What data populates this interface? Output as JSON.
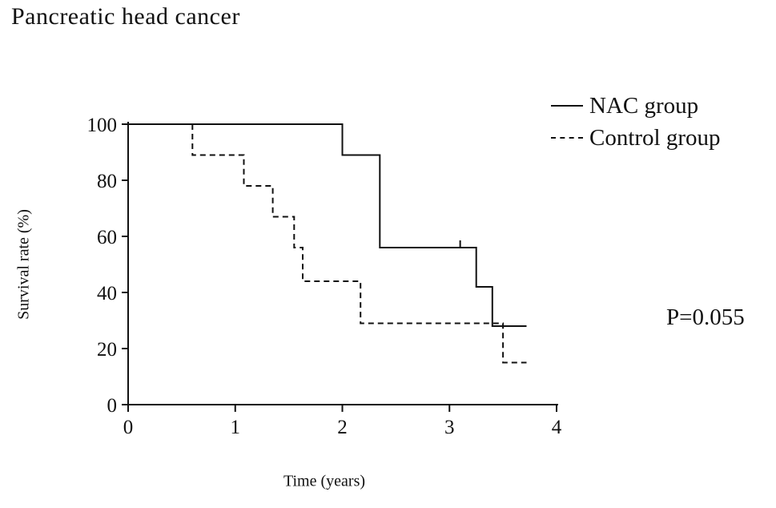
{
  "title": "Pancreatic head cancer",
  "p_value": "P=0.055",
  "legend": [
    {
      "name": "NAC group",
      "style": "solid"
    },
    {
      "name": "Control group",
      "style": "dashed"
    }
  ],
  "chart_data": {
    "type": "line",
    "subtype": "kaplan-meier-step",
    "title": "Pancreatic head cancer",
    "xlabel": "Time (years)",
    "ylabel": "Survival rate (%)",
    "xlim": [
      0,
      4
    ],
    "ylim": [
      0,
      100
    ],
    "xticks": [
      0,
      1,
      2,
      3,
      4
    ],
    "yticks": [
      0,
      20,
      40,
      60,
      80,
      100
    ],
    "grid": false,
    "legend_position": "top-right",
    "annotation": "P=0.055",
    "line_color": "#111111",
    "series": [
      {
        "name": "NAC group",
        "line": "solid",
        "points": [
          [
            0,
            100
          ],
          [
            2.0,
            100
          ],
          [
            2.0,
            89
          ],
          [
            2.35,
            89
          ],
          [
            2.35,
            56
          ],
          [
            3.25,
            56
          ],
          [
            3.25,
            42
          ],
          [
            3.4,
            42
          ],
          [
            3.4,
            28
          ],
          [
            3.72,
            28
          ]
        ],
        "censor_marks": [
          [
            3.1,
            56
          ]
        ]
      },
      {
        "name": "Control group",
        "line": "dashed",
        "points": [
          [
            0.6,
            100
          ],
          [
            0.6,
            89
          ],
          [
            1.08,
            89
          ],
          [
            1.08,
            78
          ],
          [
            1.35,
            78
          ],
          [
            1.35,
            67
          ],
          [
            1.55,
            67
          ],
          [
            1.55,
            56
          ],
          [
            1.63,
            56
          ],
          [
            1.63,
            44
          ],
          [
            2.17,
            44
          ],
          [
            2.17,
            29
          ],
          [
            3.5,
            29
          ],
          [
            3.5,
            15
          ],
          [
            3.72,
            15
          ]
        ],
        "censor_marks": []
      }
    ]
  }
}
